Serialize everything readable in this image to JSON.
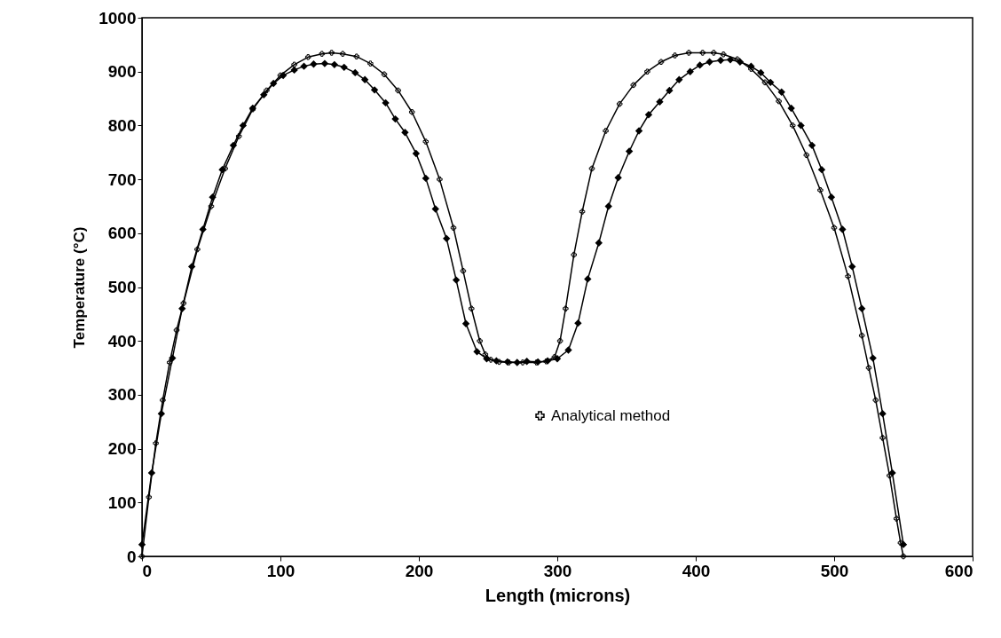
{
  "chart_data": {
    "type": "line",
    "xlabel": "Length (microns)",
    "ylabel": "Temperature (°C)",
    "xlim": [
      0,
      600
    ],
    "ylim": [
      0,
      1000
    ],
    "xticks": [
      0,
      100,
      200,
      300,
      400,
      500,
      600
    ],
    "yticks": [
      0,
      100,
      200,
      300,
      400,
      500,
      600,
      700,
      800,
      900,
      1000
    ],
    "grid": false,
    "legend": "bottom",
    "line_style": "solid",
    "series": [
      {
        "color": "#000000",
        "marker": "diamond",
        "x": [
          0,
          7,
          14,
          22,
          29,
          36,
          44,
          51,
          58,
          66,
          73,
          80,
          88,
          95,
          102,
          110,
          117,
          124,
          132,
          139,
          146,
          154,
          161,
          168,
          176,
          183,
          190,
          198,
          205,
          212,
          220,
          227,
          234,
          242,
          249,
          256,
          264,
          271,
          278,
          286,
          293,
          300,
          308,
          315,
          322,
          330,
          337,
          344,
          352,
          359,
          366,
          374,
          381,
          388,
          396,
          403,
          410,
          418,
          425,
          432,
          440,
          447,
          454,
          462,
          469,
          476,
          484,
          491,
          498,
          506,
          513,
          520,
          528,
          535,
          542,
          550
        ],
        "values": [
          22,
          155,
          265,
          368,
          460,
          538,
          607,
          667,
          718,
          763,
          800,
          832,
          857,
          878,
          893,
          903,
          910,
          914,
          915,
          913,
          908,
          898,
          885,
          866,
          842,
          812,
          787,
          748,
          702,
          645,
          590,
          513,
          432,
          380,
          367,
          363,
          361,
          360,
          362,
          361,
          363,
          367,
          383,
          433,
          515,
          582,
          650,
          703,
          752,
          790,
          820,
          844,
          865,
          885,
          900,
          912,
          918,
          921,
          922,
          918,
          910,
          898,
          880,
          862,
          832,
          800,
          763,
          718,
          667,
          607,
          538,
          460,
          368,
          265,
          155,
          22
        ]
      },
      {
        "name": "Analytical method",
        "color": "#000000",
        "marker": "cross",
        "x": [
          0,
          5,
          10,
          15,
          20,
          25,
          30,
          40,
          50,
          60,
          70,
          80,
          90,
          100,
          110,
          120,
          130,
          137,
          145,
          155,
          165,
          175,
          185,
          195,
          205,
          215,
          225,
          232,
          238,
          244,
          248,
          252,
          258,
          265,
          275,
          285,
          292,
          298,
          302,
          306,
          312,
          318,
          325,
          335,
          345,
          355,
          365,
          375,
          385,
          395,
          405,
          413,
          420,
          430,
          440,
          450,
          460,
          470,
          480,
          490,
          500,
          510,
          520,
          525,
          530,
          535,
          540,
          545,
          548,
          550
        ],
        "values": [
          0,
          110,
          210,
          290,
          360,
          420,
          470,
          570,
          650,
          720,
          780,
          830,
          865,
          893,
          913,
          927,
          933,
          935,
          933,
          928,
          915,
          895,
          865,
          825,
          770,
          700,
          610,
          530,
          460,
          400,
          375,
          365,
          361,
          360,
          360,
          360,
          362,
          370,
          400,
          460,
          560,
          640,
          720,
          790,
          840,
          875,
          900,
          918,
          930,
          935,
          935,
          935,
          932,
          923,
          905,
          880,
          845,
          800,
          745,
          680,
          610,
          520,
          410,
          350,
          290,
          220,
          150,
          70,
          25,
          0
        ]
      }
    ]
  }
}
